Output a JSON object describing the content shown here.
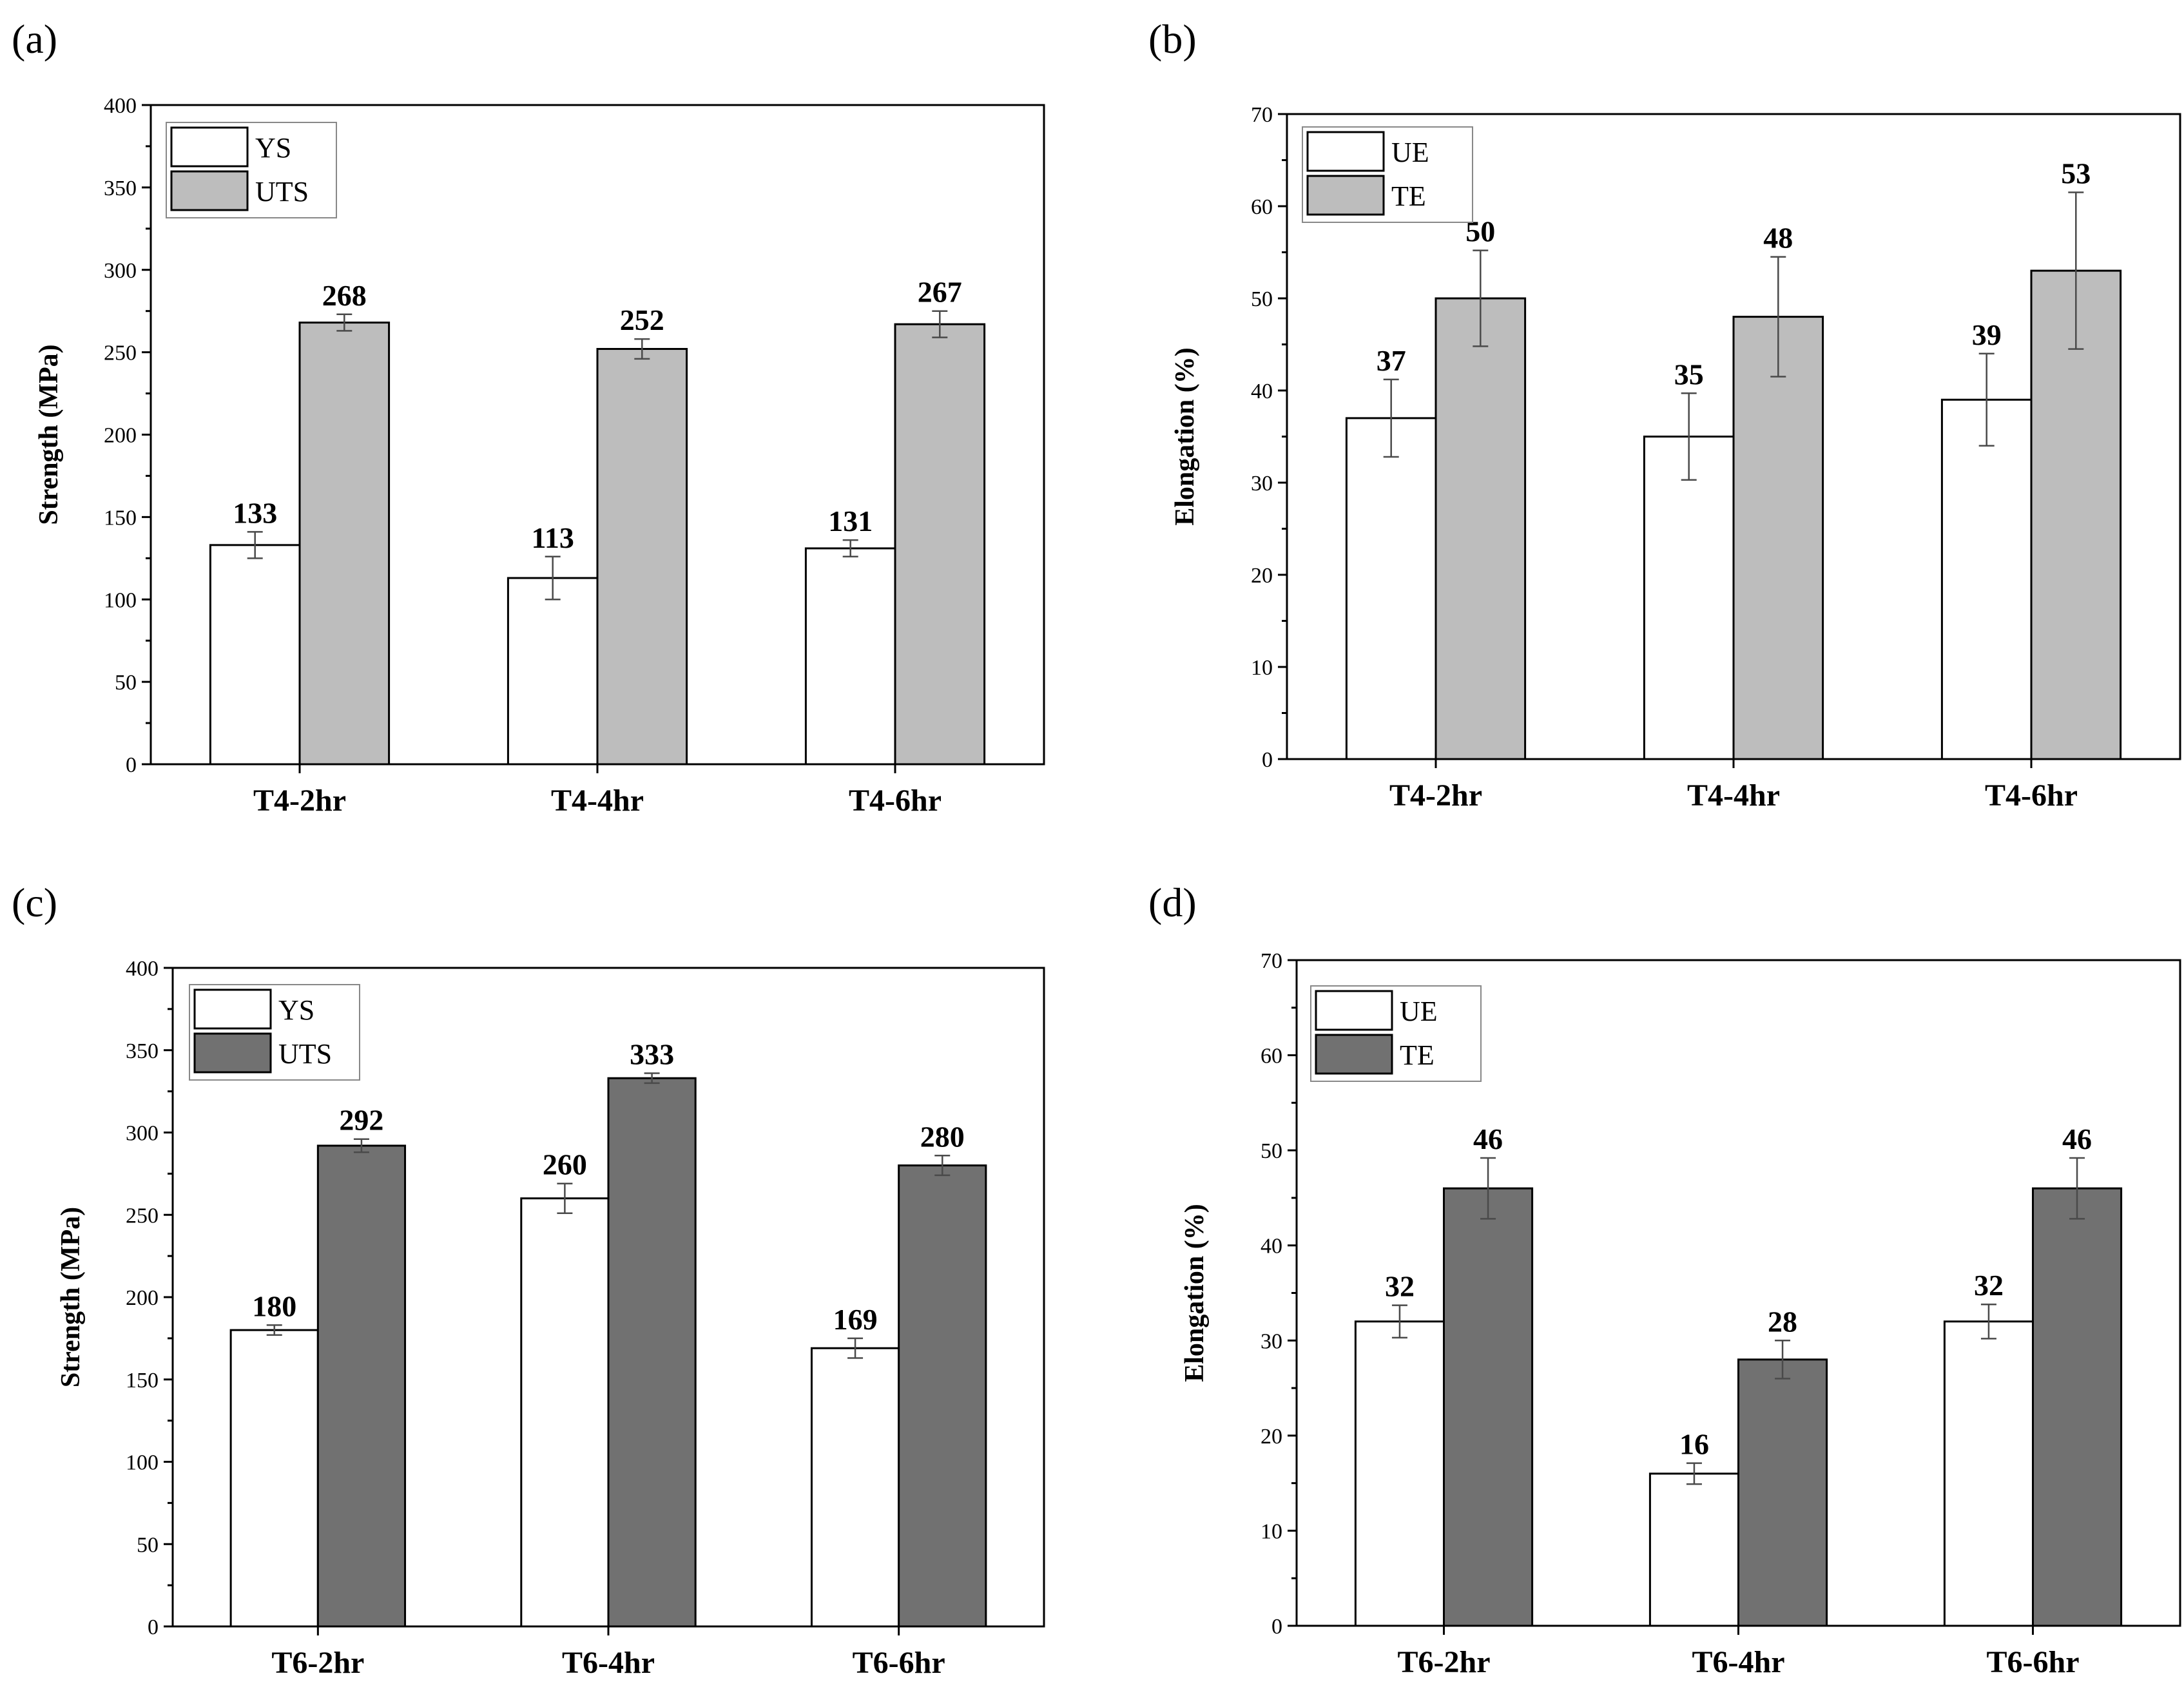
{
  "figure": {
    "panels": [
      "(a)",
      "(b)",
      "(c)",
      "(d)"
    ]
  },
  "colors": {
    "white_bar": "#ffffff",
    "light_gray_bar": "#bdbdbd",
    "dark_gray_bar": "#717171",
    "stroke": "#000000",
    "error_bar": "#4a4a4a"
  },
  "chart_data": [
    {
      "panel": "(a)",
      "type": "bar",
      "categories": [
        "T4-2hr",
        "T4-4hr",
        "T4-6hr"
      ],
      "series": [
        {
          "name": "YS",
          "values": [
            133,
            113,
            131
          ],
          "errors": [
            8,
            13,
            5
          ],
          "color": "#ffffff"
        },
        {
          "name": "UTS",
          "values": [
            268,
            252,
            267
          ],
          "errors": [
            5,
            6,
            8
          ],
          "color": "#bdbdbd"
        }
      ],
      "data_labels": [
        [
          "133",
          "113",
          "131"
        ],
        [
          "268",
          "252",
          "267"
        ]
      ],
      "ylabel": "Strength (MPa)",
      "ylim": [
        0,
        400
      ],
      "yticks": [
        0,
        50,
        100,
        150,
        200,
        250,
        300,
        350,
        400
      ],
      "yminor": 25,
      "legend": "top-left"
    },
    {
      "panel": "(b)",
      "type": "bar",
      "categories": [
        "T4-2hr",
        "T4-4hr",
        "T4-6hr"
      ],
      "series": [
        {
          "name": "UE",
          "values": [
            37,
            35,
            39
          ],
          "errors": [
            4.2,
            4.7,
            5
          ],
          "color": "#ffffff"
        },
        {
          "name": "TE",
          "values": [
            50,
            48,
            53
          ],
          "errors": [
            5.2,
            6.5,
            8.5
          ],
          "color": "#bdbdbd"
        }
      ],
      "data_labels": [
        [
          "37",
          "35",
          "39"
        ],
        [
          "50",
          "48",
          "53"
        ]
      ],
      "ylabel": "Elongation (%)",
      "ylim": [
        0,
        70
      ],
      "yticks": [
        0,
        10,
        20,
        30,
        40,
        50,
        60,
        70
      ],
      "yminor": 5,
      "legend": "top-left"
    },
    {
      "panel": "(c)",
      "type": "bar",
      "categories": [
        "T6-2hr",
        "T6-4hr",
        "T6-6hr"
      ],
      "series": [
        {
          "name": "YS",
          "values": [
            180,
            260,
            169
          ],
          "errors": [
            3,
            9,
            6
          ],
          "color": "#ffffff"
        },
        {
          "name": "UTS",
          "values": [
            292,
            333,
            280
          ],
          "errors": [
            4,
            3,
            6
          ],
          "color": "#717171"
        }
      ],
      "data_labels": [
        [
          "180",
          "260",
          "169"
        ],
        [
          "292",
          "333",
          "280"
        ]
      ],
      "ylabel": "Strength (MPa)",
      "ylim": [
        0,
        400
      ],
      "yticks": [
        0,
        50,
        100,
        150,
        200,
        250,
        300,
        350,
        400
      ],
      "yminor": 25,
      "legend": "top-left"
    },
    {
      "panel": "(d)",
      "type": "bar",
      "categories": [
        "T6-2hr",
        "T6-4hr",
        "T6-6hr"
      ],
      "series": [
        {
          "name": "UE",
          "values": [
            32,
            16,
            32
          ],
          "errors": [
            1.7,
            1.1,
            1.8
          ],
          "color": "#ffffff"
        },
        {
          "name": "TE",
          "values": [
            46,
            28,
            46
          ],
          "errors": [
            3.2,
            2,
            3.2
          ],
          "color": "#717171"
        }
      ],
      "data_labels": [
        [
          "32",
          "16",
          "32"
        ],
        [
          "46",
          "28",
          "46"
        ]
      ],
      "ylabel": "Elongation (%)",
      "ylim": [
        0,
        70
      ],
      "yticks": [
        0,
        10,
        20,
        30,
        40,
        50,
        60,
        70
      ],
      "yminor": 5,
      "legend": "top-left"
    }
  ]
}
